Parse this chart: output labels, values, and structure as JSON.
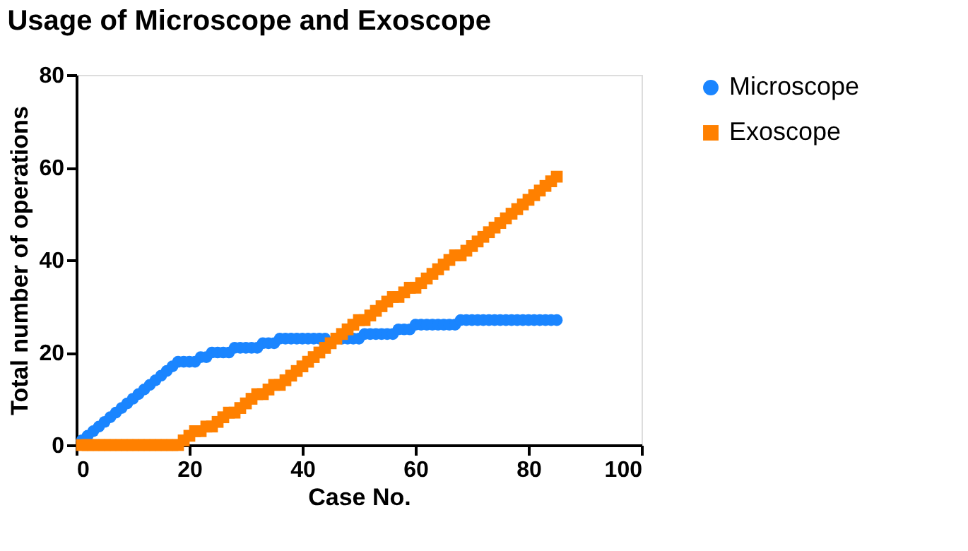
{
  "chart_data": {
    "type": "scatter",
    "title": "Usage of Microscope and Exoscope",
    "xlabel": "Case No.",
    "ylabel": "Total number of operations",
    "x": [
      1,
      2,
      3,
      4,
      5,
      6,
      7,
      8,
      9,
      10,
      11,
      12,
      13,
      14,
      15,
      16,
      17,
      18,
      19,
      20,
      21,
      22,
      23,
      24,
      25,
      26,
      27,
      28,
      29,
      30,
      31,
      32,
      33,
      34,
      35,
      36,
      37,
      38,
      39,
      40,
      41,
      42,
      43,
      44,
      45,
      46,
      47,
      48,
      49,
      50,
      51,
      52,
      53,
      54,
      55,
      56,
      57,
      58,
      59,
      60,
      61,
      62,
      63,
      64,
      65,
      66,
      67,
      68,
      69,
      70,
      71,
      72,
      73,
      74,
      75,
      76,
      77,
      78,
      79,
      80,
      81,
      82,
      83,
      84,
      85
    ],
    "series": [
      {
        "name": "Microscope",
        "color": "#1a85ff",
        "marker": "circle",
        "values": [
          1,
          2,
          3,
          4,
          5,
          6,
          7,
          8,
          9,
          10,
          11,
          12,
          13,
          14,
          15,
          16,
          17,
          18,
          18,
          18,
          18,
          19,
          19,
          20,
          20,
          20,
          20,
          21,
          21,
          21,
          21,
          21,
          22,
          22,
          22,
          23,
          23,
          23,
          23,
          23,
          23,
          23,
          23,
          23,
          null,
          null,
          23,
          23,
          23,
          23,
          24,
          24,
          24,
          24,
          24,
          24,
          25,
          25,
          25,
          26,
          26,
          26,
          26,
          26,
          26,
          26,
          26,
          27,
          27,
          27,
          27,
          27,
          27,
          27,
          27,
          27,
          27,
          27,
          27,
          27,
          27,
          27,
          27,
          27,
          27
        ]
      },
      {
        "name": "Exoscope",
        "color": "#ff8000",
        "marker": "square",
        "values": [
          0,
          0,
          0,
          0,
          0,
          0,
          0,
          0,
          0,
          0,
          0,
          0,
          0,
          0,
          0,
          0,
          0,
          0,
          1,
          2,
          3,
          3,
          4,
          4,
          5,
          6,
          7,
          7,
          8,
          9,
          10,
          11,
          11,
          12,
          13,
          13,
          14,
          15,
          16,
          17,
          18,
          19,
          20,
          21,
          22,
          23,
          24,
          25,
          26,
          27,
          27,
          28,
          29,
          30,
          31,
          32,
          32,
          33,
          34,
          34,
          35,
          36,
          37,
          38,
          39,
          40,
          41,
          41,
          42,
          43,
          44,
          45,
          46,
          47,
          48,
          49,
          50,
          51,
          52,
          53,
          54,
          55,
          56,
          57,
          58
        ]
      }
    ],
    "xlim": [
      0,
      100
    ],
    "xticks": [
      0,
      20,
      40,
      60,
      80,
      100
    ],
    "ylim": [
      0,
      80
    ],
    "yticks": [
      0,
      20,
      40,
      60,
      80
    ],
    "grid": false,
    "legend": "right"
  }
}
